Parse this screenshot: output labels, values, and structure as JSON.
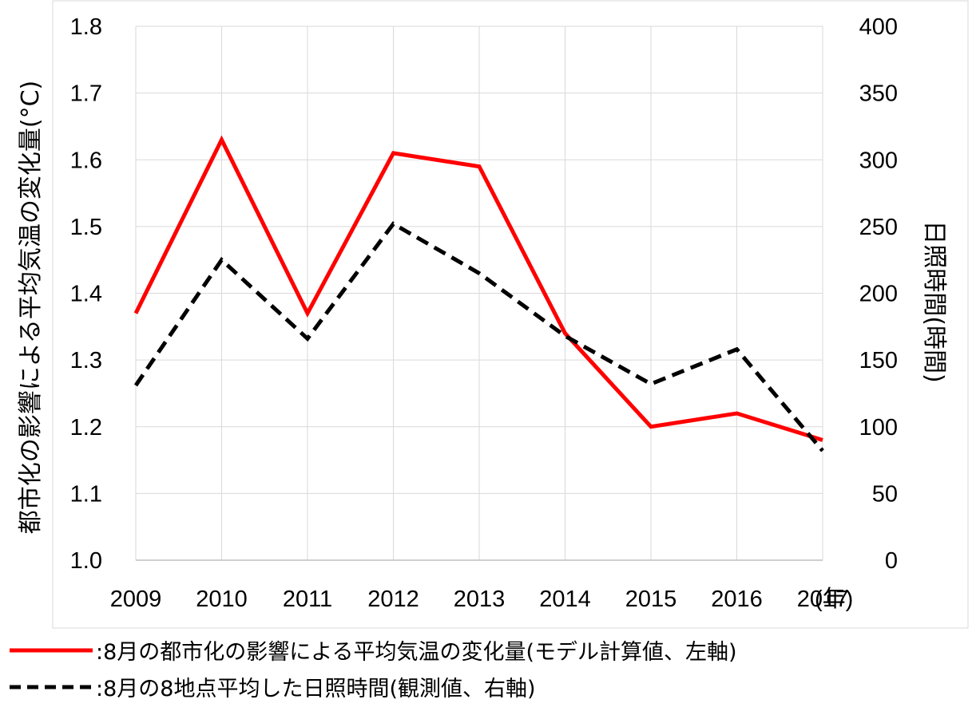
{
  "chart_data": {
    "type": "line",
    "categories": [
      "2009",
      "2010",
      "2011",
      "2012",
      "2013",
      "2014",
      "2015",
      "2016",
      "2017"
    ],
    "x_unit_label": "(年)",
    "left_axis": {
      "label": "都市化の影響による平均気温の変化量(°C)",
      "ylim": [
        1.0,
        1.8
      ],
      "ticks": [
        "1.0",
        "1.1",
        "1.2",
        "1.3",
        "1.4",
        "1.5",
        "1.6",
        "1.7",
        "1.8"
      ]
    },
    "right_axis": {
      "label": "日照時間(時間)",
      "ylim": [
        0,
        400
      ],
      "ticks": [
        "0",
        "50",
        "100",
        "150",
        "200",
        "250",
        "300",
        "350",
        "400"
      ]
    },
    "series": [
      {
        "name": ":8月の都市化の影響による平均気温の変化量(モデル計算値、左軸)",
        "axis": "left",
        "color": "#ff0000",
        "style": "solid",
        "values": [
          1.37,
          1.63,
          1.37,
          1.61,
          1.59,
          1.34,
          1.2,
          1.22,
          1.18
        ]
      },
      {
        "name": ":8月の8地点平均した日照時間(観測値、右軸)",
        "axis": "right",
        "color": "#000000",
        "style": "dashed",
        "values": [
          131,
          225,
          166,
          252,
          215,
          168,
          132,
          158,
          82
        ]
      }
    ],
    "grid": true,
    "legend_position": "bottom-left"
  }
}
